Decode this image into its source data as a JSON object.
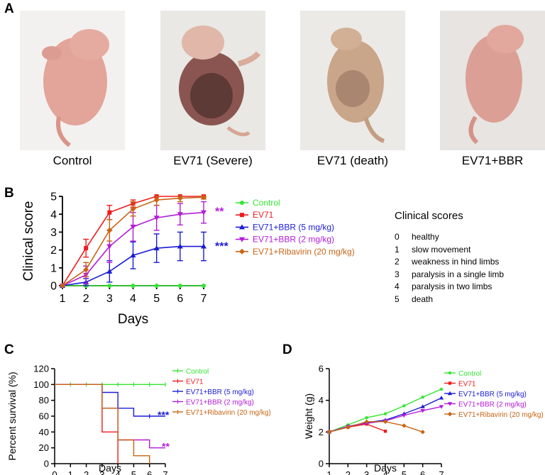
{
  "panels": {
    "a": "A",
    "b": "B",
    "c": "C",
    "d": "D"
  },
  "photos": [
    {
      "label": "Control"
    },
    {
      "label": "EV71 (Severe)"
    },
    {
      "label": "EV71 (death)"
    },
    {
      "label": "EV71+BBR"
    }
  ],
  "colors": {
    "control": "#33e633",
    "ev71": "#ee1c1c",
    "bbr5": "#1c1cd6",
    "bbr2": "#b31cd9",
    "ribavirin": "#c86414"
  },
  "clinical_scores": {
    "title": "Clinical scores",
    "items": [
      {
        "score": "0",
        "text": "healthy"
      },
      {
        "score": "1",
        "text": "slow movement"
      },
      {
        "score": "2",
        "text": "weakness in hind limbs"
      },
      {
        "score": "3",
        "text": "paralysis in a single limb"
      },
      {
        "score": "4",
        "text": "paralysis in two limbs"
      },
      {
        "score": "5",
        "text": "death"
      }
    ]
  },
  "chart_data": [
    {
      "panel": "B",
      "type": "line",
      "xlabel": "Days",
      "ylabel": "Clinical score",
      "xlim": [
        1,
        7
      ],
      "ylim": [
        0,
        5
      ],
      "x_ticks": [
        "1",
        "2",
        "3",
        "4",
        "5",
        "6",
        "7"
      ],
      "y_ticks": [
        "0",
        "1",
        "2",
        "3",
        "4",
        "5"
      ],
      "x": [
        1,
        2,
        3,
        4,
        5,
        6,
        7
      ],
      "series": [
        {
          "name": "Control",
          "color_key": "control",
          "values": [
            0,
            0,
            0,
            0,
            0,
            0,
            0
          ],
          "errors": [
            0,
            0,
            0,
            0,
            0,
            0,
            0
          ]
        },
        {
          "name": "EV71",
          "color_key": "ev71",
          "values": [
            0,
            2.1,
            4.1,
            4.6,
            5,
            5,
            5
          ],
          "errors": [
            0,
            0.5,
            0.4,
            0.2,
            0,
            0,
            0
          ]
        },
        {
          "name": "EV71+BBR (5 mg/kg)",
          "color_key": "bbr5",
          "values": [
            0,
            0.2,
            0.8,
            1.7,
            2.1,
            2.2,
            2.2
          ],
          "errors": [
            0,
            0.2,
            0.6,
            0.75,
            0.8,
            0.8,
            0.8
          ]
        },
        {
          "name": "EV71+BBR (2 mg/kg)",
          "color_key": "bbr2",
          "values": [
            0,
            0.6,
            2.2,
            3.3,
            3.8,
            4.0,
            4.1
          ],
          "errors": [
            0,
            0.5,
            0.9,
            0.8,
            0.7,
            0.6,
            0.6
          ]
        },
        {
          "name": "EV71+Ribavirin (20 mg/kg)",
          "color_key": "ribavirin",
          "values": [
            0,
            0.9,
            3.1,
            4.3,
            4.8,
            4.9,
            4.95
          ],
          "errors": [
            0,
            0.4,
            0.6,
            0.4,
            0.3,
            0.2,
            0.1
          ]
        }
      ],
      "annotations": [
        {
          "text": "**",
          "color_key": "bbr2",
          "series": 3
        },
        {
          "text": "***",
          "color_key": "bbr5",
          "series": 2
        }
      ]
    },
    {
      "panel": "C",
      "type": "line",
      "xlabel": "Days",
      "ylabel": "Percent survival (%)",
      "xlim": [
        0,
        7
      ],
      "ylim": [
        0,
        120
      ],
      "x_ticks": [
        "0",
        "1",
        "2",
        "3",
        "4",
        "5",
        "6",
        "7"
      ],
      "y_ticks": [
        "0",
        "20",
        "40",
        "60",
        "80",
        "100",
        "120"
      ],
      "series": [
        {
          "name": "Control",
          "color_key": "control",
          "steps": [
            [
              0,
              100
            ],
            [
              7,
              100
            ]
          ],
          "censor_days": [
            1,
            2,
            3,
            4,
            5,
            6,
            7
          ]
        },
        {
          "name": "EV71",
          "color_key": "ev71",
          "steps": [
            [
              0,
              100
            ],
            [
              3,
              100
            ],
            [
              3,
              40
            ],
            [
              4,
              40
            ],
            [
              4,
              0
            ]
          ],
          "censor_days": []
        },
        {
          "name": "EV71+BBR (5 mg/kg)",
          "color_key": "bbr5",
          "steps": [
            [
              0,
              100
            ],
            [
              3,
              100
            ],
            [
              3,
              90
            ],
            [
              4,
              90
            ],
            [
              4,
              70
            ],
            [
              5,
              70
            ],
            [
              5,
              60
            ],
            [
              7,
              60
            ]
          ],
          "censor_days": [
            6
          ]
        },
        {
          "name": "EV71+BBR (2 mg/kg)",
          "color_key": "bbr2",
          "steps": [
            [
              0,
              100
            ],
            [
              3,
              100
            ],
            [
              3,
              70
            ],
            [
              4,
              70
            ],
            [
              4,
              30
            ],
            [
              5,
              30
            ],
            [
              5,
              30
            ],
            [
              6,
              30
            ],
            [
              6,
              20
            ],
            [
              7,
              20
            ]
          ],
          "censor_days": []
        },
        {
          "name": "EV71+Ribavirin (20 mg/kg)",
          "color_key": "ribavirin",
          "steps": [
            [
              0,
              100
            ],
            [
              3,
              100
            ],
            [
              3,
              70
            ],
            [
              4,
              70
            ],
            [
              4,
              30
            ],
            [
              5,
              30
            ],
            [
              5,
              10
            ],
            [
              6,
              10
            ],
            [
              6,
              0
            ]
          ],
          "censor_days": []
        }
      ],
      "annotations": [
        {
          "text": "***",
          "color_key": "bbr5",
          "series": 2
        },
        {
          "text": "**",
          "color_key": "bbr2",
          "series": 3
        }
      ]
    },
    {
      "panel": "D",
      "type": "line",
      "xlabel": "Days",
      "ylabel": "Weight (g)",
      "xlim": [
        1,
        7
      ],
      "ylim": [
        0,
        6
      ],
      "x_ticks": [
        "1",
        "2",
        "3",
        "4",
        "5",
        "6",
        "7"
      ],
      "y_ticks": [
        "0",
        "2",
        "4",
        "6"
      ],
      "series": [
        {
          "name": "Control",
          "color_key": "control",
          "x": [
            1,
            2,
            3,
            4,
            5,
            6,
            7
          ],
          "values": [
            2.0,
            2.45,
            2.9,
            3.15,
            3.65,
            4.2,
            4.7
          ]
        },
        {
          "name": "EV71",
          "color_key": "ev71",
          "x": [
            1,
            2,
            3,
            4
          ],
          "values": [
            2.0,
            2.3,
            2.5,
            2.05
          ]
        },
        {
          "name": "EV71+BBR (5 mg/kg)",
          "color_key": "bbr5",
          "x": [
            1,
            2,
            3,
            4,
            5,
            6,
            7
          ],
          "values": [
            2.0,
            2.35,
            2.6,
            2.75,
            3.15,
            3.6,
            4.15
          ]
        },
        {
          "name": "EV71+BBR (2 mg/kg)",
          "color_key": "bbr2",
          "x": [
            1,
            2,
            3,
            4,
            5,
            6,
            7
          ],
          "values": [
            2.0,
            2.35,
            2.55,
            2.7,
            3.05,
            3.35,
            3.6
          ]
        },
        {
          "name": "EV71+Ribavirin (20 mg/kg)",
          "color_key": "ribavirin",
          "x": [
            1,
            2,
            3,
            4,
            5,
            6
          ],
          "values": [
            2.0,
            2.3,
            2.65,
            2.65,
            2.4,
            2.0
          ]
        }
      ]
    }
  ]
}
